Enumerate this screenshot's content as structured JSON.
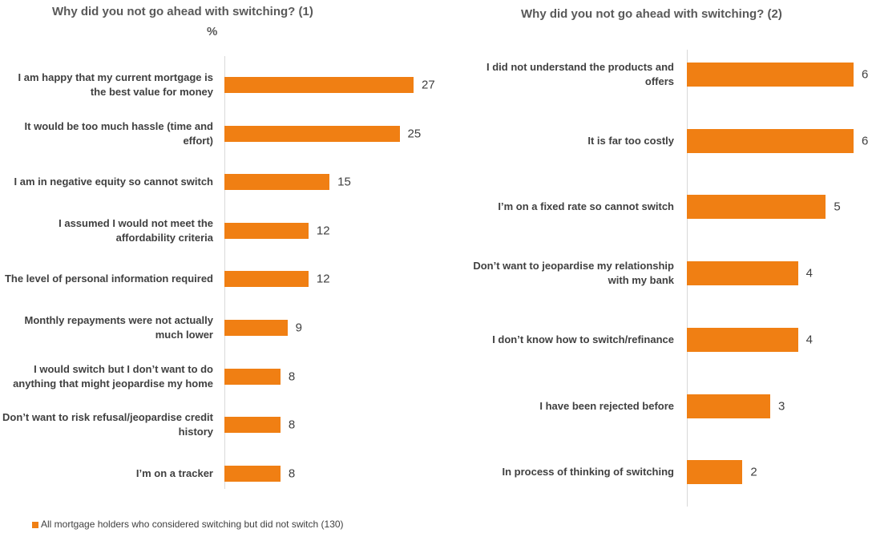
{
  "chart_data": [
    {
      "type": "bar",
      "title": "Why did you not go ahead with switching? (1)",
      "subtitle": "%",
      "categories": [
        "I am happy that my current mortgage is the best value for money",
        "It would be too much hassle (time and effort)",
        "I am in negative equity so cannot switch",
        "I assumed I would not meet the affordability criteria",
        "The level of personal information required",
        "Monthly repayments were not actually much lower",
        "I would switch but I don’t want to do anything that might jeopardise my home",
        "Don’t want to risk refusal/jeopardise credit history",
        "I’m on a tracker"
      ],
      "series": [
        {
          "name": "All mortgage holders who considered switching but did not switch (130)",
          "color": "#f07f13",
          "values": [
            27,
            25,
            15,
            12,
            12,
            9,
            8,
            8,
            8
          ]
        }
      ]
    },
    {
      "type": "bar",
      "title": "Why did you not go ahead with switching? (2)",
      "categories": [
        "I did not understand the products and offers",
        "It is far too costly",
        "I’m on a fixed rate so cannot switch",
        "Don’t want to jeopardise my relationship with my bank",
        "I don’t know how to switch/refinance",
        "I have been rejected before",
        "In process of thinking of switching"
      ],
      "color": "#f07f13",
      "values": [
        6,
        6,
        5,
        4,
        4,
        3,
        2
      ]
    }
  ]
}
